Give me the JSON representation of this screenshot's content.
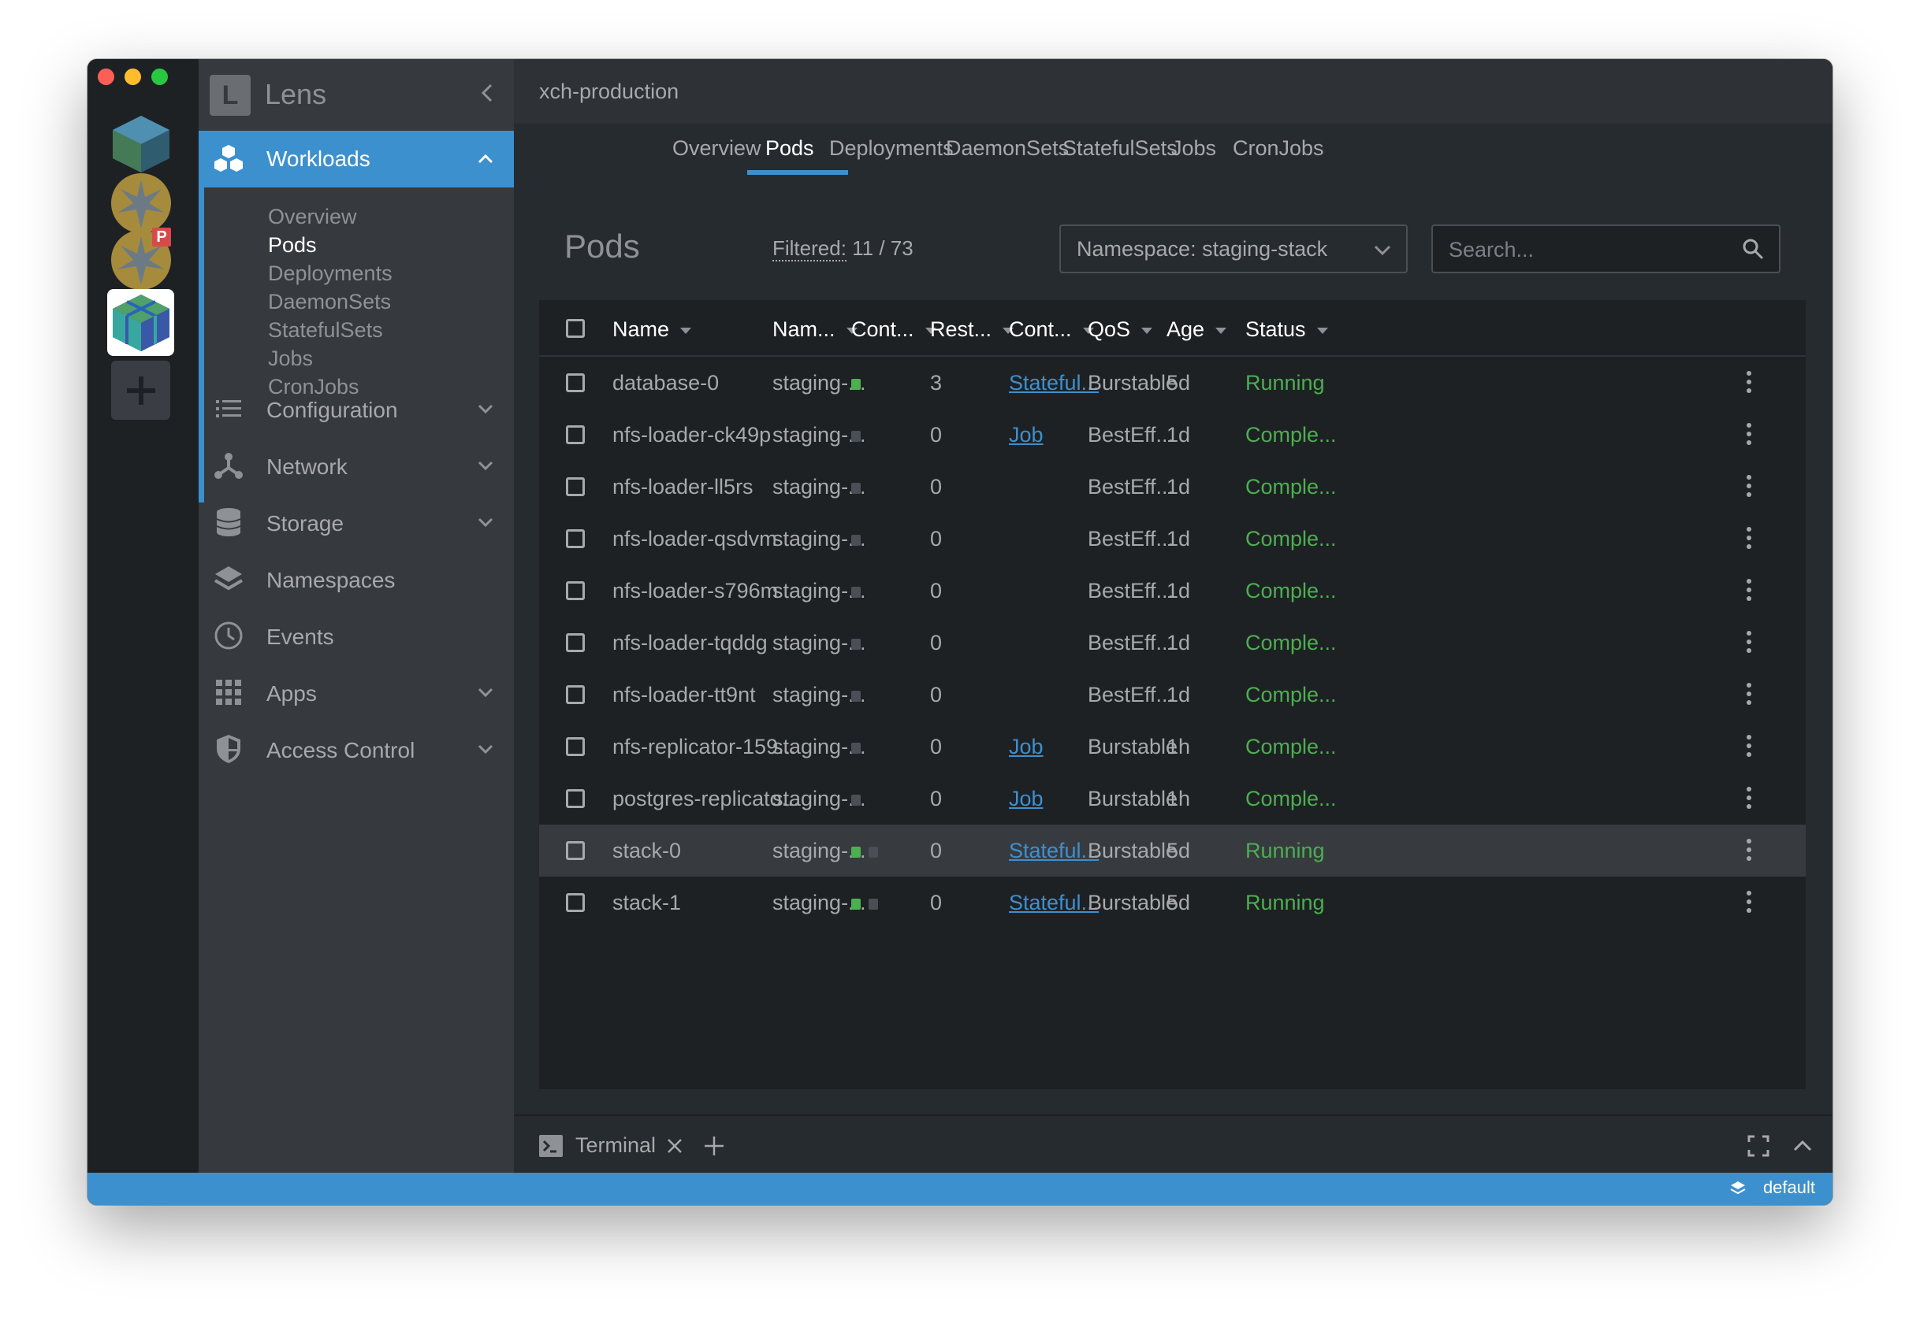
{
  "app": {
    "name": "Lens",
    "cluster_name": "xch-production"
  },
  "colors": {
    "accent": "#3d90ce",
    "running": "#4caf50",
    "completed": "#4caf50",
    "link": "#3d90ce"
  },
  "sidebar": {
    "workloads": {
      "label": "Workloads"
    },
    "workload_items": [
      "Overview",
      "Pods",
      "Deployments",
      "DaemonSets",
      "StatefulSets",
      "Jobs",
      "CronJobs"
    ],
    "sections": [
      {
        "label": "Configuration",
        "icon": "list-icon"
      },
      {
        "label": "Network",
        "icon": "network-icon"
      },
      {
        "label": "Storage",
        "icon": "database-icon"
      },
      {
        "label": "Namespaces",
        "icon": "layers-icon"
      },
      {
        "label": "Events",
        "icon": "clock-icon"
      },
      {
        "label": "Apps",
        "icon": "grid-icon"
      },
      {
        "label": "Access Control",
        "icon": "shield-icon"
      }
    ]
  },
  "tabs": [
    "Overview",
    "Pods",
    "Deployments",
    "DaemonSets",
    "StatefulSets",
    "Jobs",
    "CronJobs"
  ],
  "active_tab": "Pods",
  "pods_view": {
    "title": "Pods",
    "filtered_label": "Filtered:",
    "filtered_value": "11 / 73",
    "namespace_select": "Namespace: staging-stack",
    "search_placeholder": "Search..."
  },
  "table": {
    "headers": [
      "Name",
      "Nam...",
      "Cont...",
      "Rest...",
      "Cont...",
      "QoS",
      "Age",
      "Status"
    ],
    "rows": [
      {
        "name": "database-0",
        "namespace": "staging-...",
        "containers": [
          "green"
        ],
        "restarts": "3",
        "controlled_by": "Stateful...",
        "qos": "Burstable",
        "age": "5d",
        "status": "Running"
      },
      {
        "name": "nfs-loader-ck49p",
        "namespace": "staging-...",
        "containers": [
          "grey"
        ],
        "restarts": "0",
        "controlled_by": "Job",
        "qos": "BestEff...",
        "age": "1d",
        "status": "Comple..."
      },
      {
        "name": "nfs-loader-ll5rs",
        "namespace": "staging-...",
        "containers": [
          "grey"
        ],
        "restarts": "0",
        "controlled_by": "",
        "qos": "BestEff...",
        "age": "1d",
        "status": "Comple..."
      },
      {
        "name": "nfs-loader-qsdvm",
        "namespace": "staging-...",
        "containers": [
          "grey"
        ],
        "restarts": "0",
        "controlled_by": "",
        "qos": "BestEff...",
        "age": "1d",
        "status": "Comple..."
      },
      {
        "name": "nfs-loader-s796m",
        "namespace": "staging-...",
        "containers": [
          "grey"
        ],
        "restarts": "0",
        "controlled_by": "",
        "qos": "BestEff...",
        "age": "1d",
        "status": "Comple..."
      },
      {
        "name": "nfs-loader-tqddg",
        "namespace": "staging-...",
        "containers": [
          "grey"
        ],
        "restarts": "0",
        "controlled_by": "",
        "qos": "BestEff...",
        "age": "1d",
        "status": "Comple..."
      },
      {
        "name": "nfs-loader-tt9nt",
        "namespace": "staging-...",
        "containers": [
          "grey"
        ],
        "restarts": "0",
        "controlled_by": "",
        "qos": "BestEff...",
        "age": "1d",
        "status": "Comple..."
      },
      {
        "name": "nfs-replicator-159...",
        "namespace": "staging-...",
        "containers": [
          "grey"
        ],
        "restarts": "0",
        "controlled_by": "Job",
        "qos": "Burstable",
        "age": "1h",
        "status": "Comple..."
      },
      {
        "name": "postgres-replicato...",
        "namespace": "staging-...",
        "containers": [
          "grey"
        ],
        "restarts": "0",
        "controlled_by": "Job",
        "qos": "Burstable",
        "age": "1h",
        "status": "Comple..."
      },
      {
        "name": "stack-0",
        "namespace": "staging-...",
        "containers": [
          "green",
          "grey"
        ],
        "restarts": "0",
        "controlled_by": "Stateful...",
        "qos": "Burstable",
        "age": "5d",
        "status": "Running"
      },
      {
        "name": "stack-1",
        "namespace": "staging-...",
        "containers": [
          "green",
          "grey"
        ],
        "restarts": "0",
        "controlled_by": "Stateful...",
        "qos": "Burstable",
        "age": "5d",
        "status": "Running"
      }
    ]
  },
  "dock": {
    "terminal_label": "Terminal"
  },
  "statusbar": {
    "namespace": "default"
  }
}
